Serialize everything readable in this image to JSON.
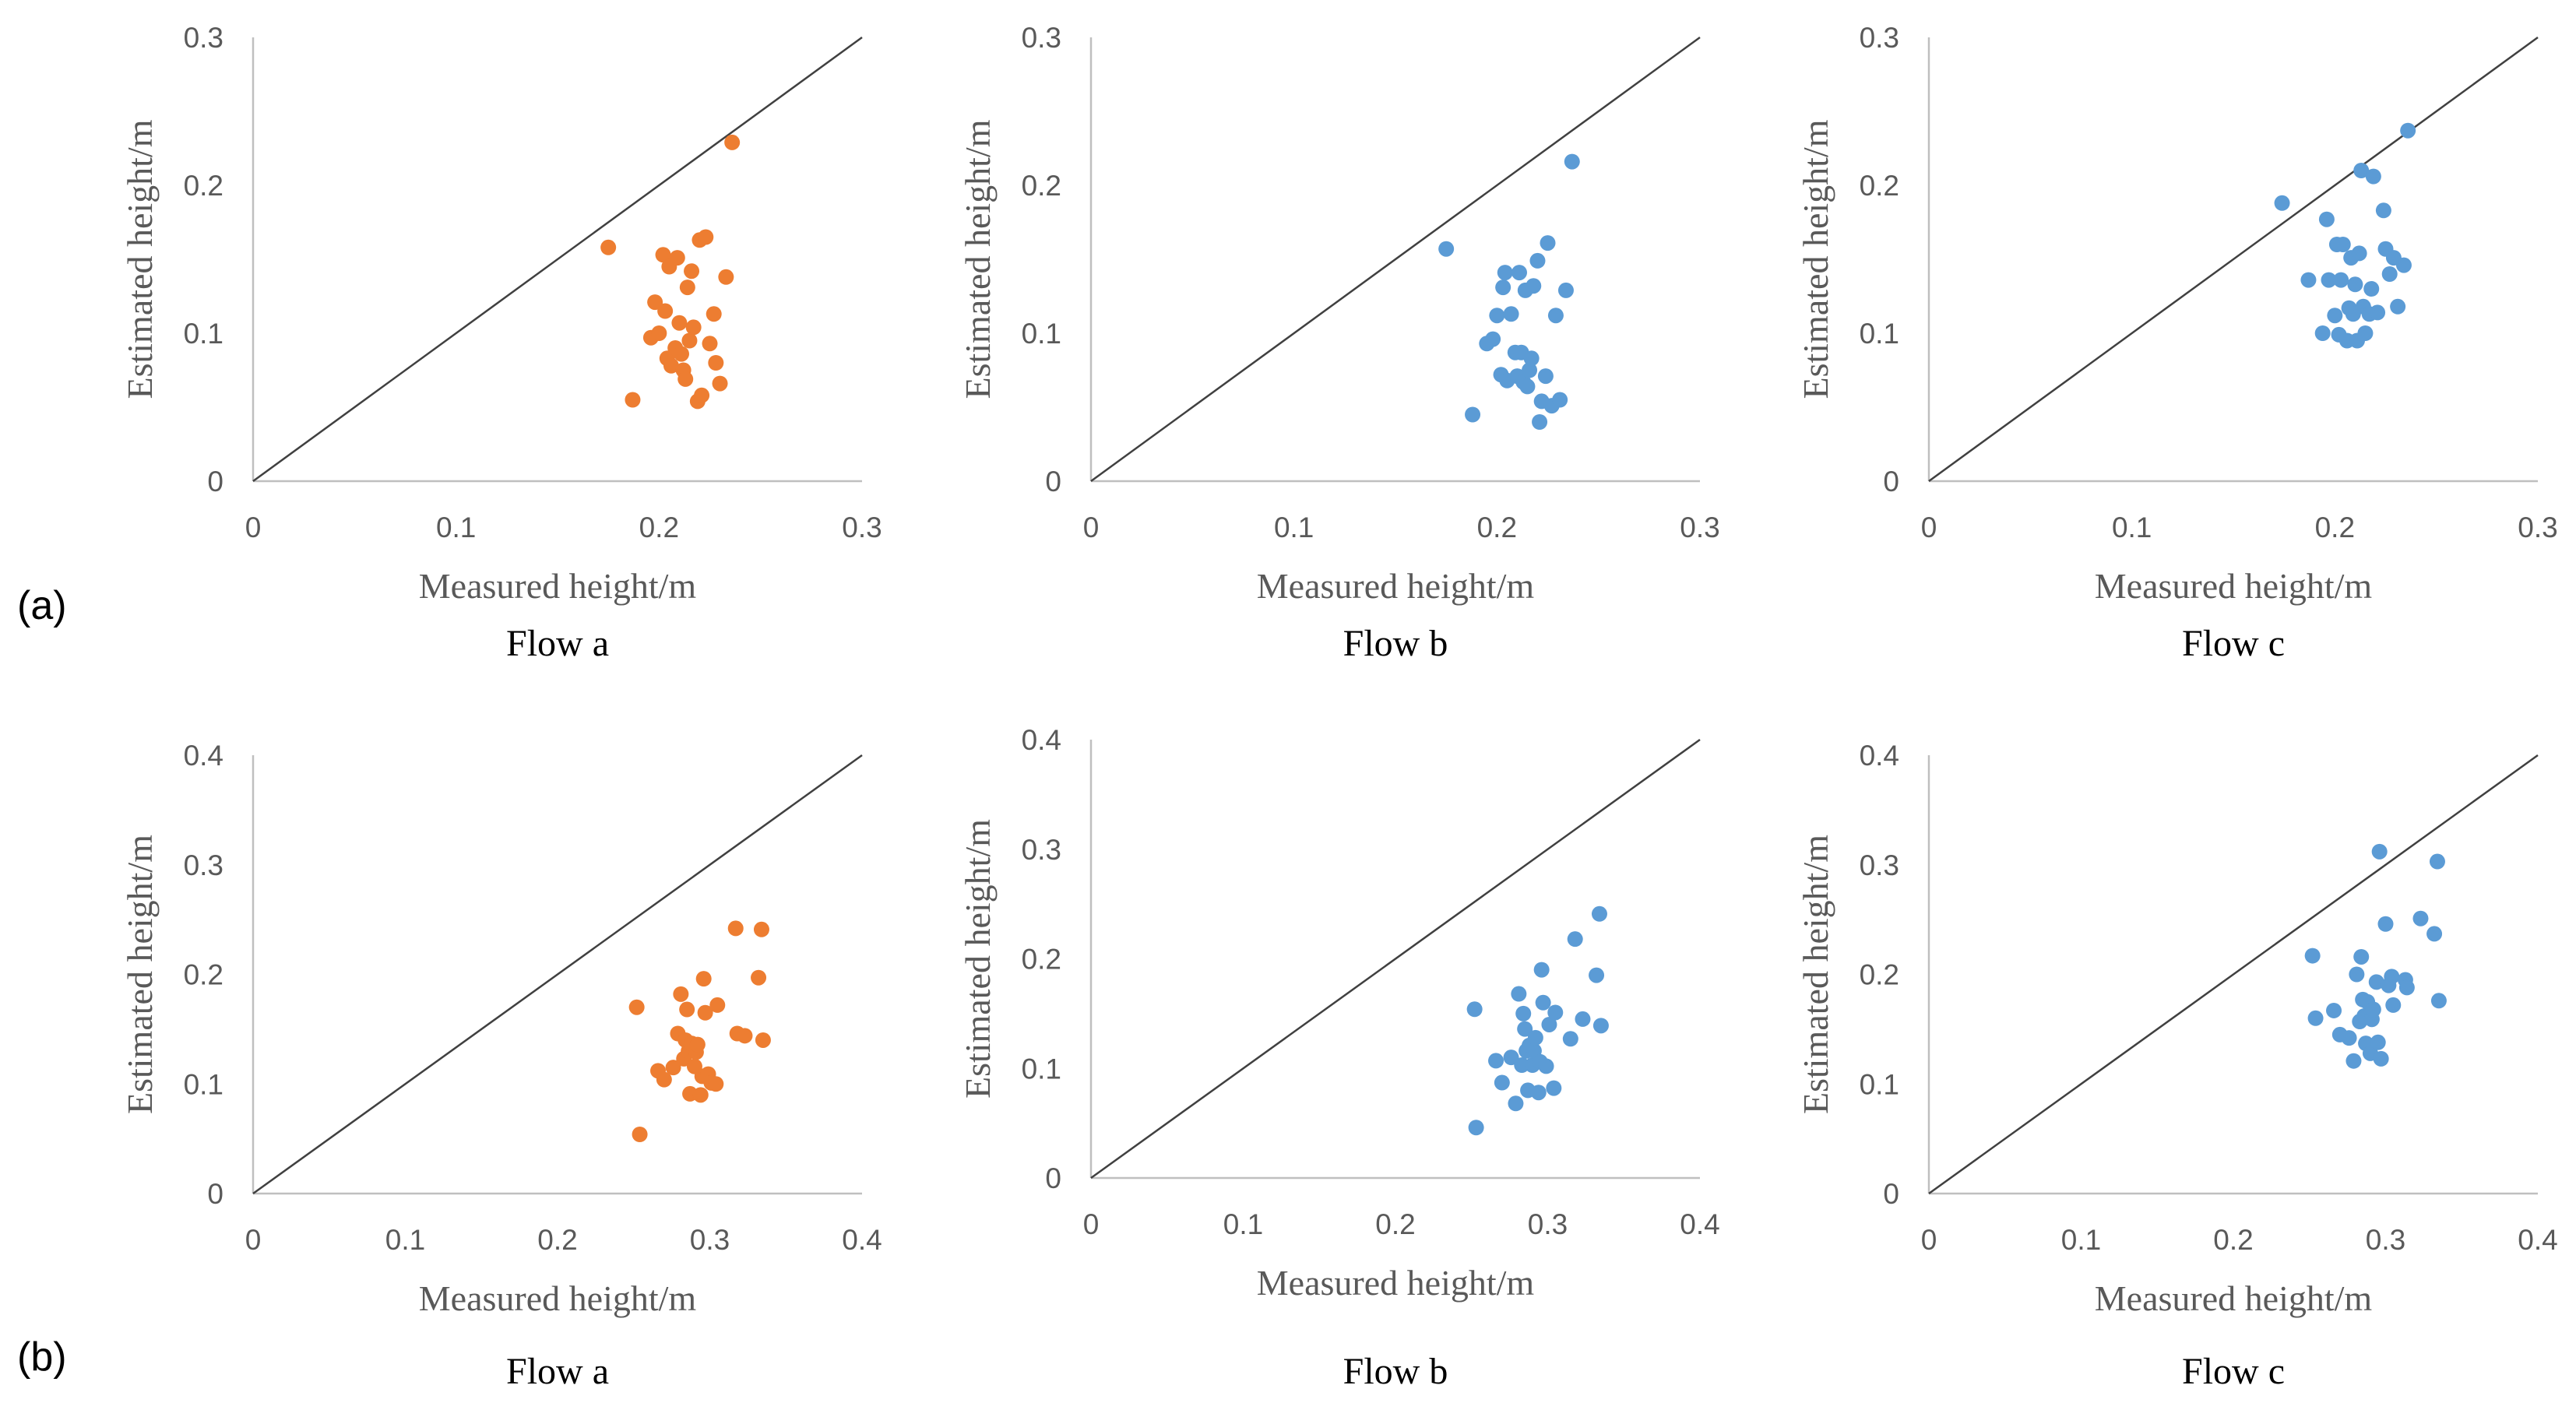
{
  "row_labels": [
    "(a)",
    "(b)"
  ],
  "colors": {
    "orange": "#ED7D31",
    "blue": "#5B9BD5",
    "axis": "#BFBFBF",
    "diagonal": "#404040"
  },
  "chart_data": [
    {
      "type": "scatter",
      "row": 0,
      "title": "Flow a",
      "color": "#ED7D31",
      "xlabel": "Measured height/m",
      "ylabel": "Estimated height/m",
      "xlim": [
        0,
        0.3
      ],
      "ylim": [
        0,
        0.3
      ],
      "xticks": [
        "0",
        "0.1",
        "0.2",
        "0.3"
      ],
      "yticks": [
        "0",
        "0.1",
        "0.2",
        "0.3"
      ],
      "reference_line": "y = x",
      "points": [
        [
          0.175,
          0.158
        ],
        [
          0.187,
          0.055
        ],
        [
          0.196,
          0.097
        ],
        [
          0.198,
          0.121
        ],
        [
          0.2,
          0.1
        ],
        [
          0.202,
          0.153
        ],
        [
          0.203,
          0.115
        ],
        [
          0.204,
          0.083
        ],
        [
          0.205,
          0.145
        ],
        [
          0.206,
          0.078
        ],
        [
          0.208,
          0.09
        ],
        [
          0.209,
          0.151
        ],
        [
          0.21,
          0.107
        ],
        [
          0.211,
          0.086
        ],
        [
          0.212,
          0.075
        ],
        [
          0.213,
          0.069
        ],
        [
          0.214,
          0.131
        ],
        [
          0.215,
          0.095
        ],
        [
          0.216,
          0.142
        ],
        [
          0.217,
          0.104
        ],
        [
          0.219,
          0.054
        ],
        [
          0.22,
          0.163
        ],
        [
          0.221,
          0.058
        ],
        [
          0.223,
          0.165
        ],
        [
          0.225,
          0.093
        ],
        [
          0.227,
          0.113
        ],
        [
          0.228,
          0.08
        ],
        [
          0.23,
          0.066
        ],
        [
          0.233,
          0.138
        ],
        [
          0.236,
          0.229
        ]
      ]
    },
    {
      "type": "scatter",
      "row": 0,
      "title": "Flow b",
      "color": "#5B9BD5",
      "xlabel": "Measured height/m",
      "ylabel": "Estimated height/m",
      "xlim": [
        0,
        0.3
      ],
      "ylim": [
        0,
        0.3
      ],
      "xticks": [
        "0",
        "0.1",
        "0.2",
        "0.3"
      ],
      "yticks": [
        "0",
        "0.1",
        "0.2",
        "0.3"
      ],
      "reference_line": "y = x",
      "points": [
        [
          0.175,
          0.157
        ],
        [
          0.188,
          0.045
        ],
        [
          0.195,
          0.093
        ],
        [
          0.198,
          0.096
        ],
        [
          0.2,
          0.112
        ],
        [
          0.202,
          0.072
        ],
        [
          0.203,
          0.131
        ],
        [
          0.204,
          0.141
        ],
        [
          0.205,
          0.068
        ],
        [
          0.207,
          0.113
        ],
        [
          0.209,
          0.087
        ],
        [
          0.21,
          0.071
        ],
        [
          0.211,
          0.141
        ],
        [
          0.212,
          0.087
        ],
        [
          0.213,
          0.067
        ],
        [
          0.214,
          0.129
        ],
        [
          0.215,
          0.064
        ],
        [
          0.216,
          0.075
        ],
        [
          0.217,
          0.083
        ],
        [
          0.218,
          0.132
        ],
        [
          0.22,
          0.149
        ],
        [
          0.221,
          0.04
        ],
        [
          0.222,
          0.054
        ],
        [
          0.224,
          0.071
        ],
        [
          0.225,
          0.161
        ],
        [
          0.227,
          0.051
        ],
        [
          0.229,
          0.112
        ],
        [
          0.231,
          0.055
        ],
        [
          0.234,
          0.129
        ],
        [
          0.237,
          0.216
        ]
      ]
    },
    {
      "type": "scatter",
      "row": 0,
      "title": "Flow c",
      "color": "#5B9BD5",
      "xlabel": "Measured height/m",
      "ylabel": "Estimated height/m",
      "xlim": [
        0,
        0.3
      ],
      "ylim": [
        0,
        0.3
      ],
      "xticks": [
        "0",
        "0.1",
        "0.2",
        "0.3"
      ],
      "yticks": [
        "0",
        "0.1",
        "0.2",
        "0.3"
      ],
      "reference_line": "y = x",
      "points": [
        [
          0.174,
          0.188
        ],
        [
          0.187,
          0.136
        ],
        [
          0.194,
          0.1
        ],
        [
          0.196,
          0.177
        ],
        [
          0.197,
          0.136
        ],
        [
          0.2,
          0.112
        ],
        [
          0.201,
          0.16
        ],
        [
          0.202,
          0.099
        ],
        [
          0.203,
          0.136
        ],
        [
          0.204,
          0.16
        ],
        [
          0.206,
          0.095
        ],
        [
          0.207,
          0.117
        ],
        [
          0.208,
          0.151
        ],
        [
          0.209,
          0.113
        ],
        [
          0.21,
          0.133
        ],
        [
          0.211,
          0.095
        ],
        [
          0.212,
          0.154
        ],
        [
          0.213,
          0.21
        ],
        [
          0.214,
          0.118
        ],
        [
          0.215,
          0.1
        ],
        [
          0.217,
          0.113
        ],
        [
          0.218,
          0.13
        ],
        [
          0.219,
          0.206
        ],
        [
          0.221,
          0.114
        ],
        [
          0.224,
          0.183
        ],
        [
          0.225,
          0.157
        ],
        [
          0.227,
          0.14
        ],
        [
          0.229,
          0.151
        ],
        [
          0.231,
          0.118
        ],
        [
          0.234,
          0.146
        ],
        [
          0.236,
          0.237
        ]
      ]
    },
    {
      "type": "scatter",
      "row": 1,
      "title": "Flow a",
      "color": "#ED7D31",
      "xlabel": "Measured height/m",
      "ylabel": "Estimated height/m",
      "xlim": [
        0,
        0.4
      ],
      "ylim": [
        0,
        0.4
      ],
      "xticks": [
        "0",
        "0.1",
        "0.2",
        "0.3",
        "0.4"
      ],
      "yticks": [
        "0",
        "0.1",
        "0.2",
        "0.3",
        "0.4"
      ],
      "reference_line": "y = x",
      "points": [
        [
          0.252,
          0.17
        ],
        [
          0.254,
          0.054
        ],
        [
          0.266,
          0.112
        ],
        [
          0.27,
          0.104
        ],
        [
          0.276,
          0.115
        ],
        [
          0.279,
          0.146
        ],
        [
          0.281,
          0.182
        ],
        [
          0.283,
          0.123
        ],
        [
          0.284,
          0.14
        ],
        [
          0.285,
          0.168
        ],
        [
          0.286,
          0.13
        ],
        [
          0.287,
          0.091
        ],
        [
          0.288,
          0.137
        ],
        [
          0.29,
          0.116
        ],
        [
          0.291,
          0.129
        ],
        [
          0.292,
          0.136
        ],
        [
          0.294,
          0.09
        ],
        [
          0.295,
          0.107
        ],
        [
          0.296,
          0.196
        ],
        [
          0.297,
          0.165
        ],
        [
          0.299,
          0.109
        ],
        [
          0.301,
          0.101
        ],
        [
          0.304,
          0.1
        ],
        [
          0.305,
          0.172
        ],
        [
          0.317,
          0.242
        ],
        [
          0.318,
          0.146
        ],
        [
          0.323,
          0.144
        ],
        [
          0.332,
          0.197
        ],
        [
          0.334,
          0.241
        ],
        [
          0.335,
          0.14
        ]
      ]
    },
    {
      "type": "scatter",
      "row": 1,
      "title": "Flow b",
      "color": "#5B9BD5",
      "xlabel": "Measured height/m",
      "ylabel": "Estimated height/m",
      "xlim": [
        0,
        0.4
      ],
      "ylim": [
        0,
        0.4
      ],
      "xticks": [
        "0",
        "0.1",
        "0.2",
        "0.3",
        "0.4"
      ],
      "yticks": [
        "0",
        "0.1",
        "0.2",
        "0.3",
        "0.4"
      ],
      "reference_line": "y = x",
      "points": [
        [
          0.252,
          0.154
        ],
        [
          0.253,
          0.046
        ],
        [
          0.266,
          0.107
        ],
        [
          0.27,
          0.087
        ],
        [
          0.276,
          0.11
        ],
        [
          0.279,
          0.068
        ],
        [
          0.281,
          0.168
        ],
        [
          0.283,
          0.103
        ],
        [
          0.284,
          0.15
        ],
        [
          0.285,
          0.136
        ],
        [
          0.286,
          0.116
        ],
        [
          0.287,
          0.08
        ],
        [
          0.288,
          0.121
        ],
        [
          0.29,
          0.103
        ],
        [
          0.291,
          0.116
        ],
        [
          0.292,
          0.128
        ],
        [
          0.294,
          0.078
        ],
        [
          0.295,
          0.106
        ],
        [
          0.296,
          0.19
        ],
        [
          0.297,
          0.16
        ],
        [
          0.299,
          0.102
        ],
        [
          0.301,
          0.14
        ],
        [
          0.304,
          0.082
        ],
        [
          0.305,
          0.151
        ],
        [
          0.315,
          0.127
        ],
        [
          0.318,
          0.218
        ],
        [
          0.323,
          0.145
        ],
        [
          0.332,
          0.185
        ],
        [
          0.334,
          0.241
        ],
        [
          0.335,
          0.139
        ]
      ]
    },
    {
      "type": "scatter",
      "row": 1,
      "title": "Flow c",
      "color": "#5B9BD5",
      "xlabel": "Measured height/m",
      "ylabel": "Estimated height/m",
      "xlim": [
        0,
        0.4
      ],
      "ylim": [
        0,
        0.4
      ],
      "xticks": [
        "0",
        "0.1",
        "0.2",
        "0.3",
        "0.4"
      ],
      "yticks": [
        "0",
        "0.1",
        "0.2",
        "0.3",
        "0.4"
      ],
      "reference_line": "y = x",
      "points": [
        [
          0.252,
          0.217
        ],
        [
          0.254,
          0.16
        ],
        [
          0.266,
          0.167
        ],
        [
          0.27,
          0.145
        ],
        [
          0.276,
          0.142
        ],
        [
          0.279,
          0.121
        ],
        [
          0.281,
          0.2
        ],
        [
          0.283,
          0.157
        ],
        [
          0.284,
          0.216
        ],
        [
          0.285,
          0.177
        ],
        [
          0.286,
          0.162
        ],
        [
          0.287,
          0.137
        ],
        [
          0.288,
          0.175
        ],
        [
          0.29,
          0.128
        ],
        [
          0.291,
          0.159
        ],
        [
          0.292,
          0.168
        ],
        [
          0.294,
          0.193
        ],
        [
          0.295,
          0.138
        ],
        [
          0.296,
          0.312
        ],
        [
          0.297,
          0.123
        ],
        [
          0.3,
          0.246
        ],
        [
          0.302,
          0.19
        ],
        [
          0.304,
          0.198
        ],
        [
          0.305,
          0.172
        ],
        [
          0.313,
          0.195
        ],
        [
          0.314,
          0.188
        ],
        [
          0.323,
          0.251
        ],
        [
          0.332,
          0.237
        ],
        [
          0.334,
          0.303
        ],
        [
          0.335,
          0.176
        ]
      ]
    }
  ]
}
